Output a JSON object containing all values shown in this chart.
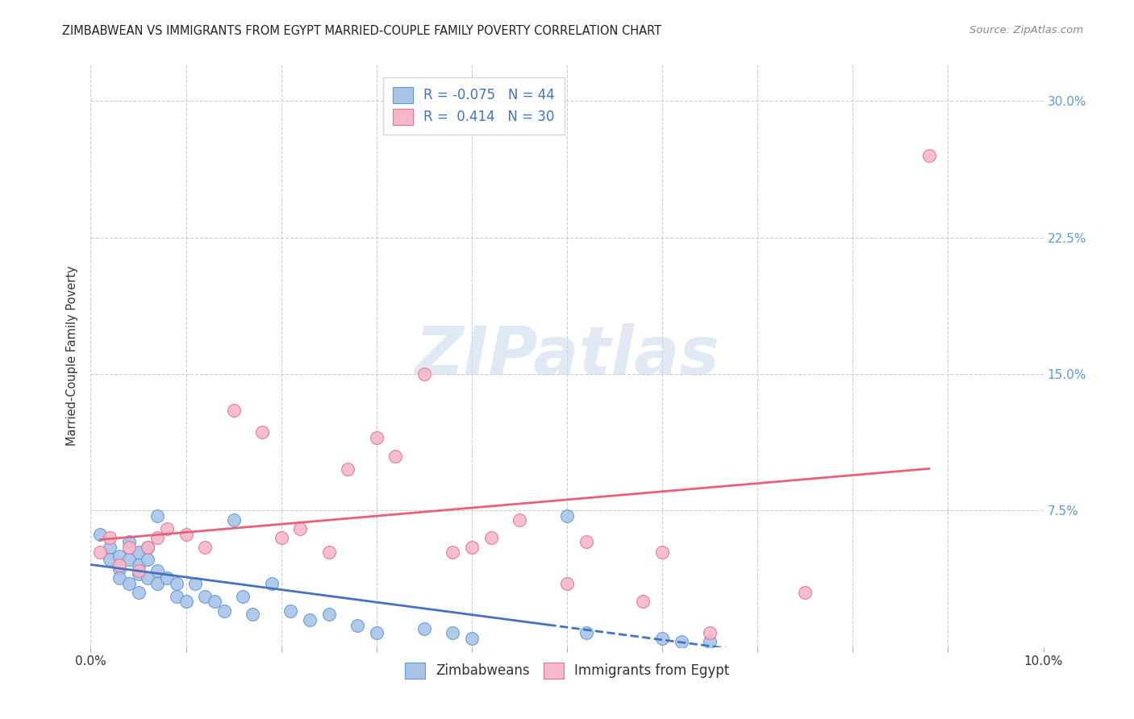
{
  "title": "ZIMBABWEAN VS IMMIGRANTS FROM EGYPT MARRIED-COUPLE FAMILY POVERTY CORRELATION CHART",
  "source": "Source: ZipAtlas.com",
  "ylabel": "Married-Couple Family Poverty",
  "xlim": [
    0.0,
    0.1
  ],
  "ylim": [
    0.0,
    0.32
  ],
  "background_color": "#ffffff",
  "grid_color": "#cccccc",
  "watermark_text": "ZIPatlas",
  "zim_color": "#aac4e8",
  "egypt_color": "#f5b8cb",
  "zim_edge_color": "#5b9bd5",
  "egypt_edge_color": "#e87090",
  "zim_line_color": "#4472c4",
  "egypt_line_color": "#e8607a",
  "legend_text_color": "#4472c4",
  "right_tick_color": "#5b9bd5",
  "zim_scatter_x": [
    0.001,
    0.002,
    0.002,
    0.003,
    0.003,
    0.003,
    0.004,
    0.004,
    0.004,
    0.005,
    0.005,
    0.005,
    0.005,
    0.006,
    0.006,
    0.006,
    0.007,
    0.007,
    0.007,
    0.008,
    0.009,
    0.009,
    0.01,
    0.011,
    0.012,
    0.013,
    0.014,
    0.015,
    0.016,
    0.017,
    0.019,
    0.021,
    0.023,
    0.025,
    0.028,
    0.03,
    0.035,
    0.038,
    0.04,
    0.05,
    0.052,
    0.06,
    0.062,
    0.065
  ],
  "zim_scatter_y": [
    0.062,
    0.055,
    0.048,
    0.05,
    0.043,
    0.038,
    0.058,
    0.048,
    0.035,
    0.052,
    0.045,
    0.04,
    0.03,
    0.055,
    0.048,
    0.038,
    0.072,
    0.042,
    0.035,
    0.038,
    0.035,
    0.028,
    0.025,
    0.035,
    0.028,
    0.025,
    0.02,
    0.07,
    0.028,
    0.018,
    0.035,
    0.02,
    0.015,
    0.018,
    0.012,
    0.008,
    0.01,
    0.008,
    0.005,
    0.072,
    0.008,
    0.005,
    0.003,
    0.003
  ],
  "egypt_scatter_x": [
    0.001,
    0.002,
    0.003,
    0.004,
    0.005,
    0.006,
    0.007,
    0.008,
    0.01,
    0.012,
    0.015,
    0.018,
    0.02,
    0.022,
    0.025,
    0.027,
    0.03,
    0.032,
    0.035,
    0.038,
    0.04,
    0.042,
    0.045,
    0.05,
    0.052,
    0.058,
    0.06,
    0.065,
    0.075,
    0.088
  ],
  "egypt_scatter_y": [
    0.052,
    0.06,
    0.045,
    0.055,
    0.042,
    0.055,
    0.06,
    0.065,
    0.062,
    0.055,
    0.13,
    0.118,
    0.06,
    0.065,
    0.052,
    0.098,
    0.115,
    0.105,
    0.15,
    0.052,
    0.055,
    0.06,
    0.07,
    0.035,
    0.058,
    0.025,
    0.052,
    0.008,
    0.03,
    0.27
  ],
  "r_zim": -0.075,
  "n_zim": 44,
  "r_egypt": 0.414,
  "n_egypt": 30
}
